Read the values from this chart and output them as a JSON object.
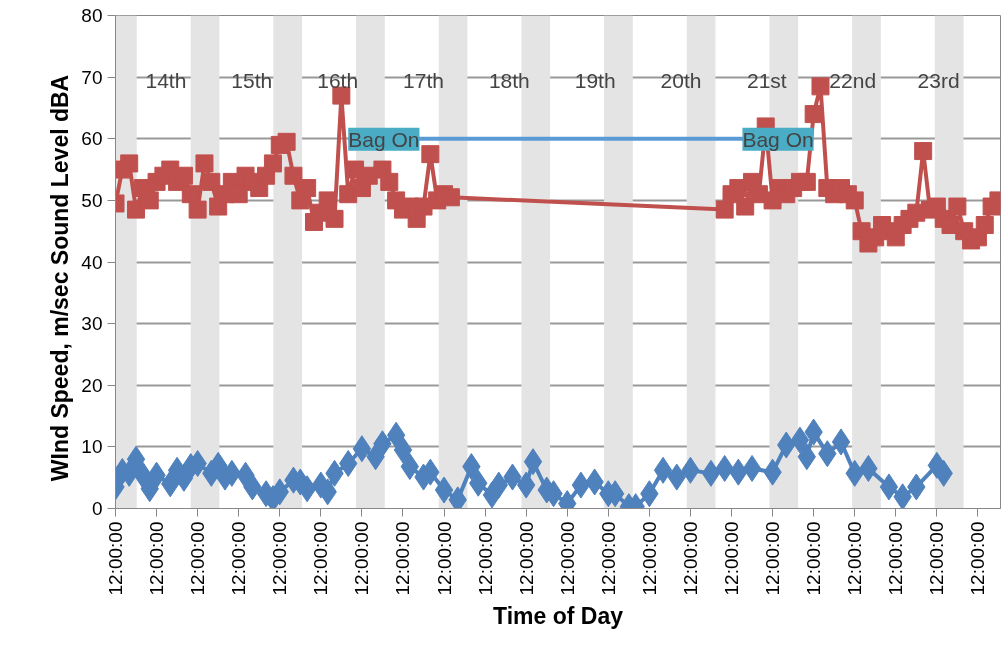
{
  "chart_data": {
    "type": "line",
    "xlabel": "Time of Day",
    "ylabel": "WInd Speed, m/sec      Sound Level dBA",
    "categories": [
      "12:00:00",
      null,
      null,
      null,
      null,
      null,
      "12:00:00",
      null,
      null,
      null,
      null,
      null,
      "12:00:00",
      null,
      null,
      null,
      null,
      null,
      "12:00:00",
      null,
      null,
      null,
      null,
      null,
      "12:00:00",
      null,
      null,
      null,
      null,
      null,
      "12:00:00",
      null,
      null,
      null,
      null,
      null,
      "12:00:00",
      null,
      null,
      null,
      null,
      null,
      "12:00:00",
      null,
      null,
      null,
      null,
      null,
      "12:00:00",
      null,
      null,
      null,
      null,
      null,
      "12:00:00",
      null,
      null,
      null,
      null,
      null,
      "12:00:00",
      null,
      null,
      null,
      null,
      null,
      "12:00:00",
      null,
      null,
      null,
      null,
      null,
      "12:00:00",
      null,
      null,
      null,
      null,
      null,
      "12:00:00",
      null,
      null,
      null,
      null,
      null,
      "12:00:00",
      null,
      null,
      null,
      null,
      null,
      "12:00:00",
      null,
      null,
      null,
      null,
      null,
      "12:00:00",
      null,
      null,
      null,
      null,
      null,
      "12:00:00",
      null,
      null,
      null,
      null,
      null,
      "12:00:00",
      null,
      null,
      null,
      null,
      null,
      "12:00:00",
      null,
      null,
      null,
      null,
      null,
      "12:00:00",
      null,
      null,
      null,
      null,
      null,
      "12:00:00",
      null,
      null,
      null
    ],
    "ylim": [
      0,
      80
    ],
    "yticks": [
      0,
      10,
      20,
      30,
      40,
      50,
      60,
      70,
      80
    ],
    "grid": "y",
    "line_style": "solid",
    "annotations": [
      "14th",
      "15th",
      "16th",
      "17th",
      "18th",
      "19th",
      "20th",
      "21st",
      "22nd",
      "23rd",
      {
        "text": "Bag On",
        "y": 60
      },
      {
        "text": "Bag On",
        "y": 60
      }
    ],
    "series": [
      {
        "color": "#5b9bd5",
        "marker": "none",
        "values": [
          null,
          null,
          null,
          null,
          null,
          null,
          null,
          null,
          null,
          null,
          null,
          null,
          null,
          null,
          null,
          null,
          null,
          null,
          null,
          null,
          null,
          null,
          null,
          null,
          null,
          null,
          null,
          null,
          null,
          null,
          null,
          null,
          null,
          null,
          60,
          null,
          null,
          null,
          null,
          null,
          null,
          null,
          null,
          null,
          null,
          null,
          null,
          null,
          null,
          null,
          null,
          null,
          null,
          null,
          null,
          null,
          null,
          null,
          null,
          null,
          null,
          null,
          null,
          null,
          null,
          null,
          null,
          null,
          null,
          null,
          null,
          null,
          null,
          null,
          null,
          null,
          null,
          null,
          null,
          null,
          null,
          null,
          null,
          null,
          null,
          null,
          null,
          null,
          null,
          null,
          null,
          null,
          null,
          null,
          null,
          null,
          null,
          null,
          null,
          null,
          null,
          null,
          60,
          null,
          null,
          null,
          null,
          null,
          null,
          null,
          null,
          null,
          null,
          null,
          null,
          null,
          null,
          null,
          null,
          null,
          null,
          null,
          null,
          null,
          null,
          null,
          null,
          null,
          null,
          null
        ]
      },
      {
        "color": "#c0504d",
        "marker": "square",
        "values": [
          49.5,
          55,
          56,
          48.5,
          52,
          50,
          53,
          54,
          55,
          53,
          54,
          51,
          48.5,
          56,
          53,
          49,
          51,
          53,
          51,
          54,
          53,
          52,
          54,
          56,
          59,
          59.5,
          54,
          50,
          52,
          46.5,
          48,
          50,
          47,
          67,
          51,
          55,
          52,
          54,
          null,
          55,
          53,
          50,
          48.5,
          49,
          47,
          49,
          57.5,
          50,
          51,
          50.5,
          null,
          null,
          null,
          null,
          null,
          null,
          null,
          null,
          null,
          null,
          null,
          null,
          null,
          null,
          null,
          null,
          null,
          null,
          null,
          null,
          null,
          null,
          null,
          null,
          null,
          null,
          null,
          null,
          null,
          null,
          null,
          null,
          null,
          null,
          null,
          null,
          null,
          null,
          null,
          48.5,
          51,
          52,
          49,
          53,
          51,
          62,
          50,
          52,
          51,
          52,
          53,
          53,
          64,
          68.5,
          52,
          51,
          52,
          51,
          50,
          45,
          43,
          44,
          46,
          45,
          44,
          46,
          47,
          48,
          58,
          48.5,
          49,
          47,
          46,
          49,
          45,
          43.5,
          44,
          46,
          49,
          50
        ]
      },
      {
        "color": "#4f81bd",
        "marker": "diamond",
        "values": [
          3.5,
          6,
          5.7,
          8,
          5.4,
          3.2,
          5.4,
          null,
          4,
          6.2,
          4.9,
          6.8,
          7.3,
          null,
          5.7,
          7,
          5.1,
          5.7,
          null,
          5.4,
          3.5,
          null,
          2.4,
          1.6,
          2.7,
          null,
          4.6,
          4.3,
          3.2,
          null,
          3.8,
          2.7,
          5.7,
          null,
          7.3,
          null,
          9.7,
          null,
          8.4,
          10.5,
          null,
          11.9,
          9.5,
          6.8,
          null,
          5.1,
          5.9,
          null,
          3,
          null,
          1.4,
          null,
          6.8,
          4.1,
          null,
          2.2,
          3.8,
          null,
          5.1,
          null,
          3.8,
          7.6,
          null,
          3,
          2.4,
          null,
          0.8,
          null,
          3.8,
          null,
          4.3,
          null,
          2.4,
          2.4,
          null,
          0.3,
          0.3,
          null,
          2.4,
          null,
          6.2,
          null,
          5.1,
          null,
          6.2,
          null,
          null,
          5.7,
          null,
          6.5,
          null,
          5.9,
          null,
          6.5,
          null,
          null,
          5.9,
          null,
          10.3,
          null,
          11.1,
          8.4,
          12.4,
          null,
          8.9,
          null,
          10.8,
          null,
          5.7,
          null,
          6.5,
          null,
          null,
          3.5,
          null,
          1.9,
          null,
          3.5,
          null,
          null,
          7,
          5.7,
          null,
          null,
          null,
          null,
          null,
          null,
          null,
          null
        ]
      }
    ]
  }
}
